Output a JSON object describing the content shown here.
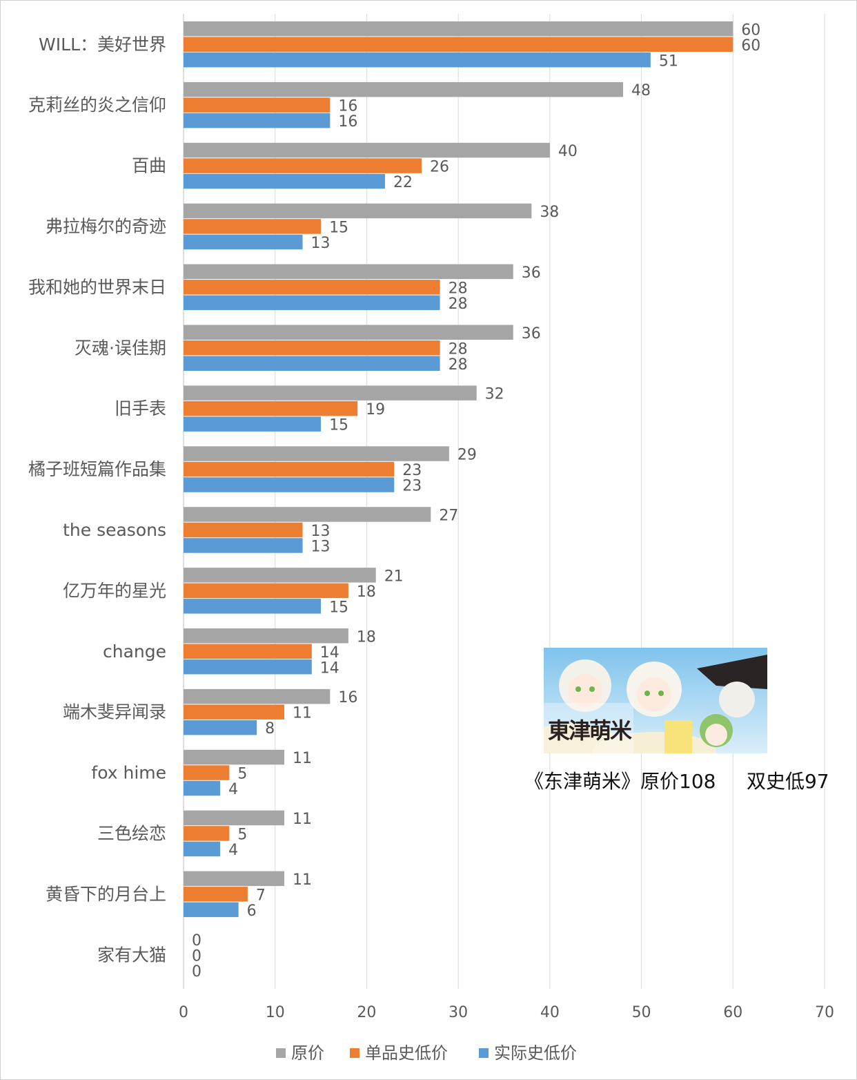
{
  "chart_data": {
    "type": "bar",
    "orientation": "horizontal",
    "categories": [
      "WILL：美好世界",
      "克莉丝的炎之信仰",
      "百曲",
      "弗拉梅尔的奇迹",
      "我和她的世界末日",
      "灭魂·误佳期",
      "旧手表",
      "橘子班短篇作品集",
      "the seasons",
      "亿万年的星光",
      "change",
      "端木斐异闻录",
      "fox hime",
      "三色绘恋",
      "黄昏下的月台上",
      "家有大猫"
    ],
    "series": [
      {
        "name": "原价",
        "color": "#a5a5a5",
        "values": [
          60,
          48,
          40,
          38,
          36,
          36,
          32,
          29,
          27,
          21,
          18,
          16,
          11,
          11,
          11,
          0
        ]
      },
      {
        "name": "单品史低价",
        "color": "#ed7d31",
        "values": [
          60,
          16,
          26,
          15,
          28,
          28,
          19,
          23,
          13,
          18,
          14,
          11,
          5,
          5,
          7,
          0
        ]
      },
      {
        "name": "实际史低价",
        "color": "#5b9bd5",
        "values": [
          51,
          16,
          22,
          13,
          28,
          28,
          15,
          23,
          13,
          15,
          14,
          8,
          4,
          4,
          6,
          0
        ]
      }
    ],
    "xlim": [
      0,
      70
    ],
    "xticks": [
      "0",
      "10",
      "20",
      "30",
      "40",
      "50",
      "60",
      "70"
    ],
    "grid": true,
    "legend_position": "bottom",
    "data_labels": true
  },
  "promo": {
    "logo_text": "東津萌米",
    "caption": "《东津萌米》原价108     双史低97"
  }
}
